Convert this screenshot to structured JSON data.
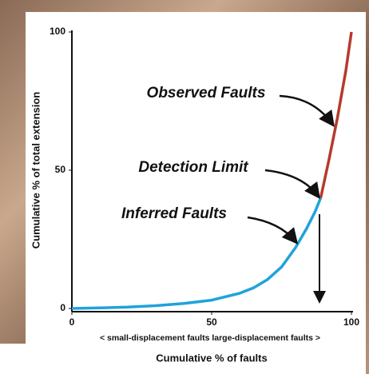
{
  "chart_data": {
    "type": "line",
    "x_label": "Cumulative % of faults",
    "x_sublabel": "< small-displacement faults   large-displacement faults >",
    "y_label": "Cumulative % of total extension",
    "xlim": [
      0,
      100
    ],
    "ylim": [
      0,
      100
    ],
    "xticks": [
      0,
      50,
      100
    ],
    "yticks": [
      0,
      50,
      100
    ],
    "series": [
      {
        "color": "#1fa3dc",
        "x": [
          0,
          10,
          20,
          30,
          40,
          50,
          60,
          65,
          70,
          75,
          80,
          84,
          87,
          89
        ],
        "values": [
          0,
          0.2,
          0.5,
          1,
          1.8,
          3,
          5.5,
          7.5,
          10.5,
          15,
          22,
          29,
          35,
          40
        ]
      },
      {
        "color": "#b63a2b",
        "x": [
          89,
          92,
          95,
          98,
          100
        ],
        "values": [
          40,
          54,
          69,
          86,
          100
        ]
      }
    ],
    "annotations": [
      {
        "text": "Observed Faults"
      },
      {
        "text": "Detection Limit"
      },
      {
        "text": "Inferred Faults"
      }
    ]
  }
}
